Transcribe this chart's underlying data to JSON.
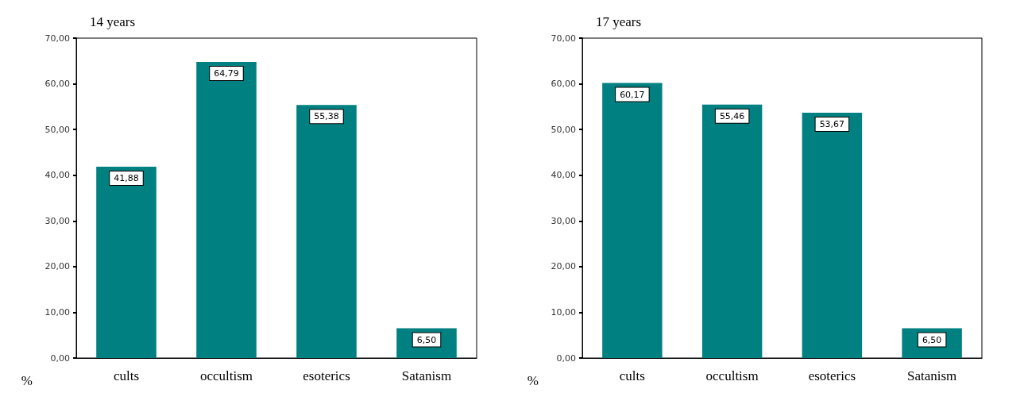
{
  "chart_data": [
    {
      "type": "bar",
      "title": "14 years",
      "ylabel": "%",
      "categories": [
        "cults",
        "occultism",
        "esoterics",
        "Satanism"
      ],
      "values": [
        41.88,
        64.79,
        55.38,
        6.5
      ],
      "value_labels": [
        "41,88",
        "64,79",
        "55,38",
        "6,50"
      ],
      "color": "#008080",
      "ylim": [
        0,
        70
      ],
      "yticks": [
        {
          "value": 0,
          "label": "0,00"
        },
        {
          "value": 10,
          "label": "10,00"
        },
        {
          "value": 20,
          "label": "20,00"
        },
        {
          "value": 30,
          "label": "30,00"
        },
        {
          "value": 40,
          "label": "40,00"
        },
        {
          "value": 50,
          "label": "50,00"
        },
        {
          "value": 60,
          "label": "60,00"
        },
        {
          "value": 70,
          "label": "70,00"
        }
      ],
      "grid": false
    },
    {
      "type": "bar",
      "title": "17 years",
      "ylabel": "%",
      "categories": [
        "cults",
        "occultism",
        "esoterics",
        "Satanism"
      ],
      "values": [
        60.17,
        55.46,
        53.67,
        6.5
      ],
      "value_labels": [
        "60,17",
        "55,46",
        "53,67",
        "6,50"
      ],
      "color": "#008080",
      "ylim": [
        0,
        70
      ],
      "yticks": [
        {
          "value": 0,
          "label": "0,00"
        },
        {
          "value": 10,
          "label": "10,00"
        },
        {
          "value": 20,
          "label": "20,00"
        },
        {
          "value": 30,
          "label": "30,00"
        },
        {
          "value": 40,
          "label": "40,00"
        },
        {
          "value": 50,
          "label": "50,00"
        },
        {
          "value": 60,
          "label": "60,00"
        },
        {
          "value": 70,
          "label": "70,00"
        }
      ],
      "grid": false
    }
  ]
}
